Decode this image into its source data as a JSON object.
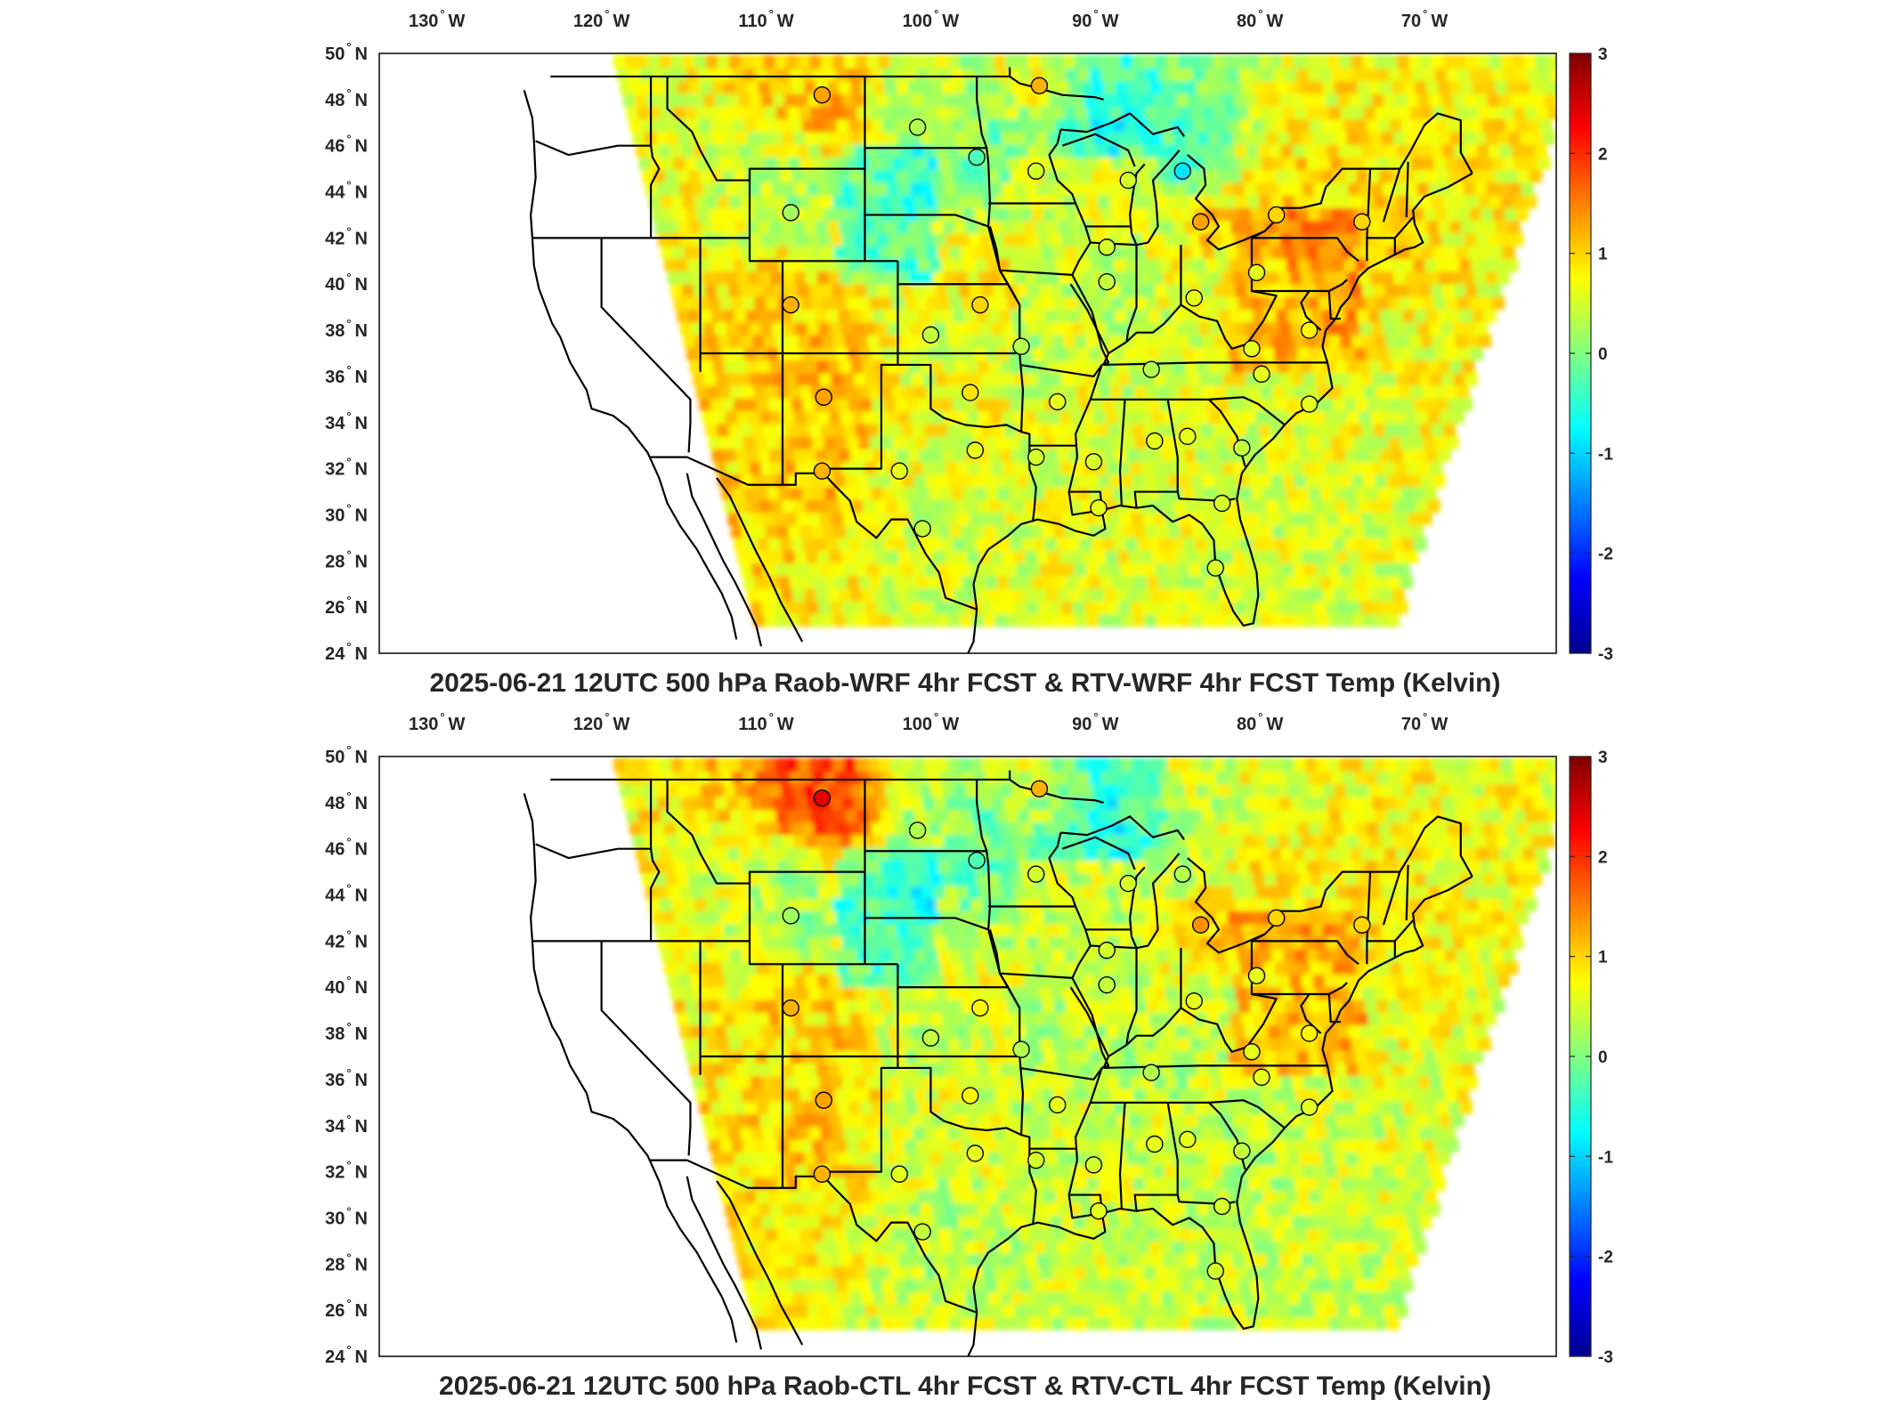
{
  "colorbar": {
    "min": -3,
    "max": 3,
    "colormap": "jet",
    "ticks": [
      "3",
      "2",
      "1",
      "0",
      "-1",
      "-2",
      "-3"
    ],
    "stops": [
      "#00008f",
      "#0000ff",
      "#0080ff",
      "#00ffff",
      "#80ff80",
      "#ffff00",
      "#ff8000",
      "#ff0000",
      "#800000"
    ]
  },
  "lon_labels": [
    {
      "deg": "130",
      "hem": "W"
    },
    {
      "deg": "120",
      "hem": "W"
    },
    {
      "deg": "110",
      "hem": "W"
    },
    {
      "deg": "100",
      "hem": "W"
    },
    {
      "deg": "90",
      "hem": "W"
    },
    {
      "deg": "80",
      "hem": "W"
    },
    {
      "deg": "70",
      "hem": "W"
    }
  ],
  "lat_labels": [
    {
      "deg": "50",
      "hem": "N"
    },
    {
      "deg": "48",
      "hem": "N"
    },
    {
      "deg": "46",
      "hem": "N"
    },
    {
      "deg": "44",
      "hem": "N"
    },
    {
      "deg": "42",
      "hem": "N"
    },
    {
      "deg": "40",
      "hem": "N"
    },
    {
      "deg": "38",
      "hem": "N"
    },
    {
      "deg": "36",
      "hem": "N"
    },
    {
      "deg": "34",
      "hem": "N"
    },
    {
      "deg": "32",
      "hem": "N"
    },
    {
      "deg": "30",
      "hem": "N"
    },
    {
      "deg": "28",
      "hem": "N"
    },
    {
      "deg": "26",
      "hem": "N"
    },
    {
      "deg": "24",
      "hem": "N"
    }
  ],
  "panels": [
    {
      "title": "2025-06-21 12UTC 500 hPa Raob-WRF 4hr FCST & RTV-WRF 4hr FCST Temp (Kelvin)",
      "stations": [
        {
          "lon": -106.6,
          "lat": 48.2,
          "value": 1.3
        },
        {
          "lon": -93.4,
          "lat": 48.6,
          "value": 1.2
        },
        {
          "lon": -100.8,
          "lat": 46.8,
          "value": 0.3
        },
        {
          "lon": -97.2,
          "lat": 45.5,
          "value": -0.3
        },
        {
          "lon": -93.6,
          "lat": 44.9,
          "value": 0.5
        },
        {
          "lon": -88.0,
          "lat": 44.5,
          "value": 0.5
        },
        {
          "lon": -84.7,
          "lat": 44.9,
          "value": -0.9
        },
        {
          "lon": -108.5,
          "lat": 43.1,
          "value": 0.2
        },
        {
          "lon": -89.3,
          "lat": 41.6,
          "value": 0.5
        },
        {
          "lon": -83.6,
          "lat": 42.7,
          "value": 1.3
        },
        {
          "lon": -79.0,
          "lat": 43.0,
          "value": 1.0
        },
        {
          "lon": -73.8,
          "lat": 42.7,
          "value": 1.0
        },
        {
          "lon": -108.5,
          "lat": 39.1,
          "value": 1.2
        },
        {
          "lon": -97.0,
          "lat": 39.1,
          "value": 1.0
        },
        {
          "lon": -100.0,
          "lat": 37.8,
          "value": 0.4
        },
        {
          "lon": -89.3,
          "lat": 40.1,
          "value": 0.4
        },
        {
          "lon": -84.0,
          "lat": 39.4,
          "value": 0.6
        },
        {
          "lon": -80.2,
          "lat": 40.5,
          "value": 0.6
        },
        {
          "lon": -94.5,
          "lat": 37.3,
          "value": 0.3
        },
        {
          "lon": -86.6,
          "lat": 36.3,
          "value": 0.3
        },
        {
          "lon": -80.5,
          "lat": 37.2,
          "value": 0.6
        },
        {
          "lon": -79.9,
          "lat": 36.1,
          "value": 0.6
        },
        {
          "lon": -77.0,
          "lat": 38.0,
          "value": 0.8
        },
        {
          "lon": -106.5,
          "lat": 35.1,
          "value": 1.3
        },
        {
          "lon": -97.6,
          "lat": 35.3,
          "value": 0.9
        },
        {
          "lon": -92.3,
          "lat": 34.9,
          "value": 0.6
        },
        {
          "lon": -77.0,
          "lat": 34.8,
          "value": 0.6
        },
        {
          "lon": -106.6,
          "lat": 31.9,
          "value": 1.2
        },
        {
          "lon": -101.9,
          "lat": 31.9,
          "value": 0.6
        },
        {
          "lon": -97.3,
          "lat": 32.8,
          "value": 0.6
        },
        {
          "lon": -93.6,
          "lat": 32.5,
          "value": 0.5
        },
        {
          "lon": -90.1,
          "lat": 32.3,
          "value": 0.5
        },
        {
          "lon": -86.4,
          "lat": 33.2,
          "value": 0.6
        },
        {
          "lon": -84.4,
          "lat": 33.4,
          "value": 0.6
        },
        {
          "lon": -81.1,
          "lat": 32.9,
          "value": 0.4
        },
        {
          "lon": -100.5,
          "lat": 29.4,
          "value": 0.4
        },
        {
          "lon": -89.8,
          "lat": 30.3,
          "value": 0.6
        },
        {
          "lon": -82.3,
          "lat": 30.5,
          "value": 0.5
        },
        {
          "lon": -82.7,
          "lat": 27.7,
          "value": 0.5
        }
      ],
      "field": {
        "seed": 11,
        "bias": 0.15
      }
    },
    {
      "title": "2025-06-21 12UTC 500 hPa Raob-CTL 4hr FCST & RTV-CTL 4hr FCST Temp (Kelvin)",
      "stations": [
        {
          "lon": -106.6,
          "lat": 48.2,
          "value": 2.4
        },
        {
          "lon": -93.4,
          "lat": 48.6,
          "value": 1.2
        },
        {
          "lon": -100.8,
          "lat": 46.8,
          "value": 0.3
        },
        {
          "lon": -97.2,
          "lat": 45.5,
          "value": -0.3
        },
        {
          "lon": -93.6,
          "lat": 44.9,
          "value": 0.5
        },
        {
          "lon": -88.0,
          "lat": 44.5,
          "value": 0.5
        },
        {
          "lon": -84.7,
          "lat": 44.9,
          "value": 0.3
        },
        {
          "lon": -108.5,
          "lat": 43.1,
          "value": 0.2
        },
        {
          "lon": -89.3,
          "lat": 41.6,
          "value": 0.5
        },
        {
          "lon": -83.6,
          "lat": 42.7,
          "value": 1.4
        },
        {
          "lon": -79.0,
          "lat": 43.0,
          "value": 1.0
        },
        {
          "lon": -73.8,
          "lat": 42.7,
          "value": 1.0
        },
        {
          "lon": -108.5,
          "lat": 39.1,
          "value": 1.2
        },
        {
          "lon": -97.0,
          "lat": 39.1,
          "value": 0.8
        },
        {
          "lon": -100.0,
          "lat": 37.8,
          "value": 0.4
        },
        {
          "lon": -89.3,
          "lat": 40.1,
          "value": 0.4
        },
        {
          "lon": -84.0,
          "lat": 39.4,
          "value": 0.6
        },
        {
          "lon": -80.2,
          "lat": 40.5,
          "value": 0.6
        },
        {
          "lon": -94.5,
          "lat": 37.3,
          "value": 0.3
        },
        {
          "lon": -86.6,
          "lat": 36.3,
          "value": 0.3
        },
        {
          "lon": -80.5,
          "lat": 37.2,
          "value": 0.6
        },
        {
          "lon": -79.9,
          "lat": 36.1,
          "value": 0.6
        },
        {
          "lon": -77.0,
          "lat": 38.0,
          "value": 0.8
        },
        {
          "lon": -106.5,
          "lat": 35.1,
          "value": 1.3
        },
        {
          "lon": -97.6,
          "lat": 35.3,
          "value": 0.8
        },
        {
          "lon": -92.3,
          "lat": 34.9,
          "value": 0.6
        },
        {
          "lon": -77.0,
          "lat": 34.8,
          "value": 0.6
        },
        {
          "lon": -106.6,
          "lat": 31.9,
          "value": 1.2
        },
        {
          "lon": -101.9,
          "lat": 31.9,
          "value": 0.6
        },
        {
          "lon": -97.3,
          "lat": 32.8,
          "value": 0.6
        },
        {
          "lon": -93.6,
          "lat": 32.5,
          "value": 0.5
        },
        {
          "lon": -90.1,
          "lat": 32.3,
          "value": 0.5
        },
        {
          "lon": -86.4,
          "lat": 33.2,
          "value": 0.6
        },
        {
          "lon": -84.4,
          "lat": 33.4,
          "value": 0.6
        },
        {
          "lon": -81.1,
          "lat": 32.9,
          "value": 0.4
        },
        {
          "lon": -100.5,
          "lat": 29.4,
          "value": 0.4
        },
        {
          "lon": -89.8,
          "lat": 30.3,
          "value": 0.6
        },
        {
          "lon": -82.3,
          "lat": 30.5,
          "value": 0.5
        },
        {
          "lon": -82.7,
          "lat": 27.7,
          "value": 0.5
        }
      ],
      "field": {
        "seed": 23,
        "bias": 0.05
      }
    }
  ]
}
